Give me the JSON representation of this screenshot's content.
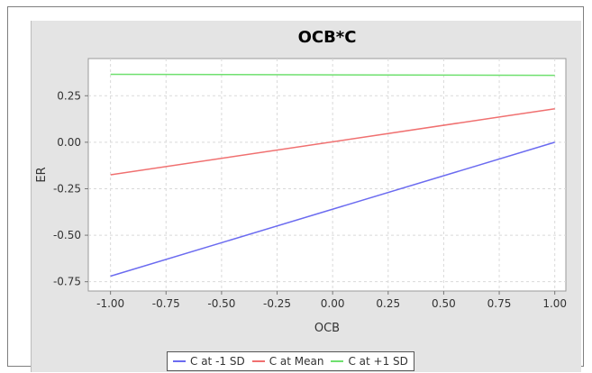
{
  "chart_data": {
    "type": "line",
    "title": "OCB*C",
    "xlabel": "OCB",
    "ylabel": "ER",
    "xlim": [
      -1.1,
      1.05
    ],
    "ylim": [
      -0.8,
      0.45
    ],
    "x_ticks": [
      "-1.00",
      "-0.75",
      "-0.50",
      "-0.25",
      "0.00",
      "0.25",
      "0.50",
      "0.75",
      "1.00"
    ],
    "y_ticks": [
      "0.25",
      "0.00",
      "-0.25",
      "-0.50",
      "-0.75"
    ],
    "grid": true,
    "legend_position": "bottom",
    "series": [
      {
        "name": "C at -1 SD",
        "color": "#6b6bf0",
        "x": [
          -1.0,
          1.0
        ],
        "y": [
          -0.72,
          0.0
        ]
      },
      {
        "name": "C at Mean",
        "color": "#f07070",
        "x": [
          -1.0,
          1.0
        ],
        "y": [
          -0.175,
          0.18
        ]
      },
      {
        "name": "C at +1 SD",
        "color": "#6fe06f",
        "x": [
          -1.0,
          1.0
        ],
        "y": [
          0.365,
          0.36
        ]
      }
    ]
  }
}
